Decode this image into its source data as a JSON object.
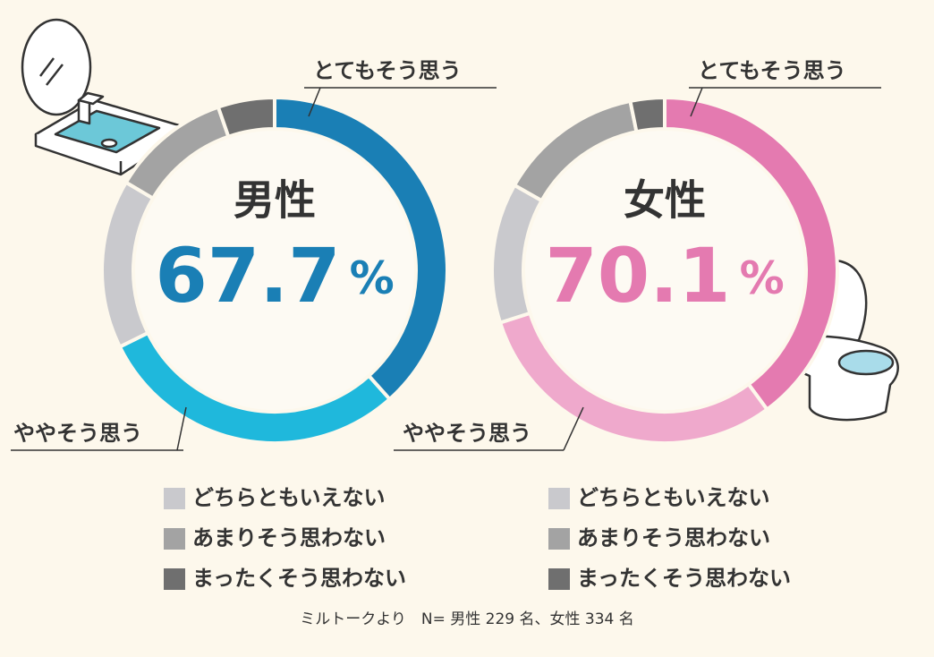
{
  "chart_data": [
    {
      "type": "pie",
      "title": "男性",
      "center_text": "67.7",
      "center_unit": "%",
      "categories": [
        "とてもそう思う",
        "ややそう思う",
        "どちらともいえない",
        "あまりそう思わない",
        "まったくそう思わない"
      ],
      "values": [
        38.4,
        29.3,
        15.8,
        11.2,
        5.3
      ],
      "colors": [
        "#1a7fb5",
        "#1fb8dc",
        "#c9c9cd",
        "#a3a3a3",
        "#6f6f6f"
      ]
    },
    {
      "type": "pie",
      "title": "女性",
      "center_text": "70.1",
      "center_unit": "%",
      "categories": [
        "とてもそう思う",
        "ややそう思う",
        "どちらともいえない",
        "あまりそう思わない",
        "まったくそう思わない"
      ],
      "values": [
        39.9,
        30.2,
        13.1,
        13.6,
        3.2
      ],
      "colors": [
        "#e47ab0",
        "#efa9cc",
        "#c9c9cd",
        "#a3a3a3",
        "#6f6f6f"
      ]
    }
  ],
  "note": "ミルトークより　N= 男性 229 名、女性 334 名"
}
